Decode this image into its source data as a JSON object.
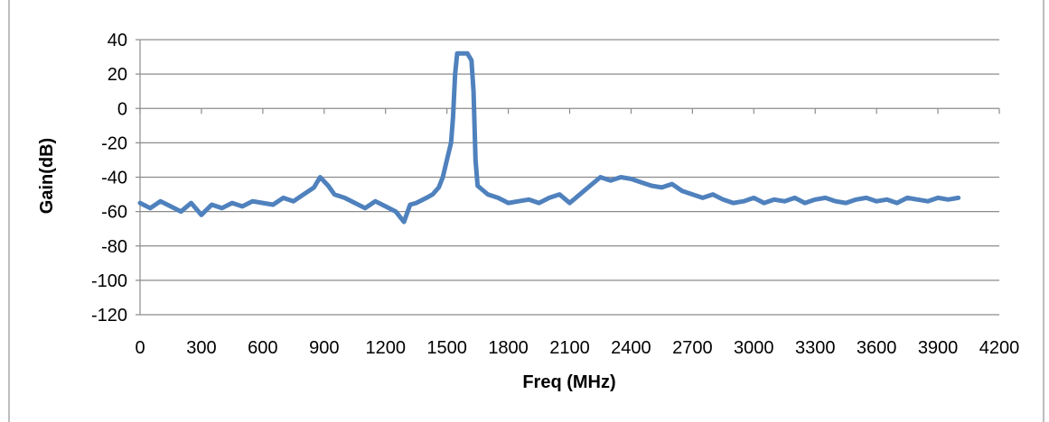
{
  "chart_data": {
    "type": "line",
    "title": "",
    "xlabel": "Freq (MHz)",
    "ylabel": "Gain(dB)",
    "xlim": [
      0,
      4200
    ],
    "ylim": [
      -120,
      40
    ],
    "x_ticks": [
      0,
      300,
      600,
      900,
      1200,
      1500,
      1800,
      2100,
      2400,
      2700,
      3000,
      3300,
      3600,
      3900,
      4200
    ],
    "y_ticks": [
      40,
      20,
      0,
      -20,
      -40,
      -60,
      -80,
      -100,
      -120
    ],
    "grid": "horizontal",
    "legend": "none",
    "series_color": "#4f81bd",
    "series": [
      {
        "x": [
          0,
          50,
          100,
          150,
          200,
          250,
          300,
          350,
          400,
          450,
          500,
          550,
          600,
          650,
          700,
          750,
          800,
          850,
          880,
          920,
          950,
          1000,
          1050,
          1100,
          1150,
          1200,
          1250,
          1290,
          1320,
          1350,
          1400,
          1430,
          1460,
          1480,
          1500,
          1520,
          1530,
          1540,
          1550,
          1600,
          1620,
          1630,
          1640,
          1650,
          1700,
          1750,
          1800,
          1850,
          1900,
          1950,
          2000,
          2050,
          2100,
          2150,
          2200,
          2250,
          2300,
          2350,
          2400,
          2450,
          2500,
          2550,
          2600,
          2650,
          2700,
          2750,
          2800,
          2850,
          2900,
          2950,
          3000,
          3050,
          3100,
          3150,
          3200,
          3250,
          3300,
          3350,
          3400,
          3450,
          3500,
          3550,
          3600,
          3650,
          3700,
          3750,
          3800,
          3850,
          3900,
          3950,
          4000
        ],
        "y": [
          -55,
          -58,
          -54,
          -57,
          -60,
          -55,
          -62,
          -56,
          -58,
          -55,
          -57,
          -54,
          -55,
          -56,
          -52,
          -54,
          -50,
          -46,
          -40,
          -45,
          -50,
          -52,
          -55,
          -58,
          -54,
          -57,
          -60,
          -66,
          -56,
          -55,
          -52,
          -50,
          -46,
          -40,
          -30,
          -20,
          -5,
          20,
          32,
          32,
          28,
          10,
          -30,
          -45,
          -50,
          -52,
          -55,
          -54,
          -53,
          -55,
          -52,
          -50,
          -55,
          -50,
          -45,
          -40,
          -42,
          -40,
          -41,
          -43,
          -45,
          -46,
          -44,
          -48,
          -50,
          -52,
          -50,
          -53,
          -55,
          -54,
          -52,
          -55,
          -53,
          -54,
          -52,
          -55,
          -53,
          -52,
          -54,
          -55,
          -53,
          -52,
          -54,
          -53,
          -55,
          -52,
          -53,
          -54,
          -52,
          -53,
          -52
        ]
      }
    ]
  }
}
